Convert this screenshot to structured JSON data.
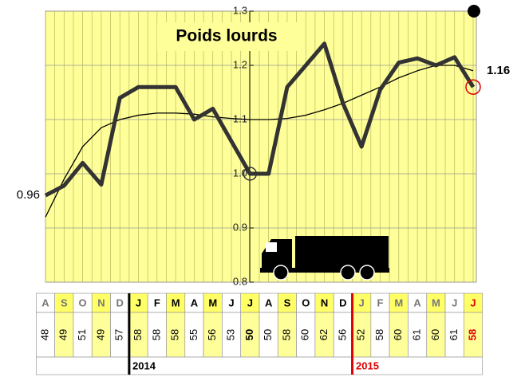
{
  "chart_data": {
    "type": "line",
    "title": "Poids lourds",
    "categories": [
      "A",
      "S",
      "O",
      "N",
      "D",
      "J",
      "F",
      "M",
      "A",
      "M",
      "J",
      "J",
      "A",
      "S",
      "O",
      "N",
      "D",
      "J",
      "F",
      "M",
      "A",
      "M",
      "J",
      "J"
    ],
    "series": [
      {
        "color": "#333333",
        "values": [
          0.96,
          0.978,
          1.02,
          0.98,
          1.14,
          1.16,
          1.16,
          1.16,
          1.1,
          1.12,
          1.06,
          1.0,
          1.0,
          1.16,
          1.2,
          1.24,
          1.13,
          1.05,
          1.155,
          1.205,
          1.213,
          1.2,
          1.215,
          1.16
        ]
      },
      {
        "color": "#000000",
        "values": [
          0.92,
          0.99,
          1.05,
          1.085,
          1.1,
          1.108,
          1.112,
          1.112,
          1.11,
          1.105,
          1.102,
          1.1,
          1.1,
          1.102,
          1.108,
          1.118,
          1.13,
          1.145,
          1.16,
          1.177,
          1.19,
          1.2,
          1.2,
          1.19
        ]
      }
    ],
    "ylim": [
      0.8,
      1.3
    ],
    "yticks": [
      0.8,
      0.9,
      {
        "value": 1,
        "label": "1.0"
      },
      1.1,
      1.2,
      1.3
    ],
    "grid": true,
    "background": "#ffff99",
    "counts": [
      48,
      49,
      51,
      49,
      57,
      58,
      58,
      58,
      55,
      56,
      53,
      50,
      50,
      58,
      60,
      62,
      56,
      52,
      58,
      60,
      61,
      60,
      61,
      58
    ],
    "years": [
      "2014",
      "2015"
    ]
  }
}
